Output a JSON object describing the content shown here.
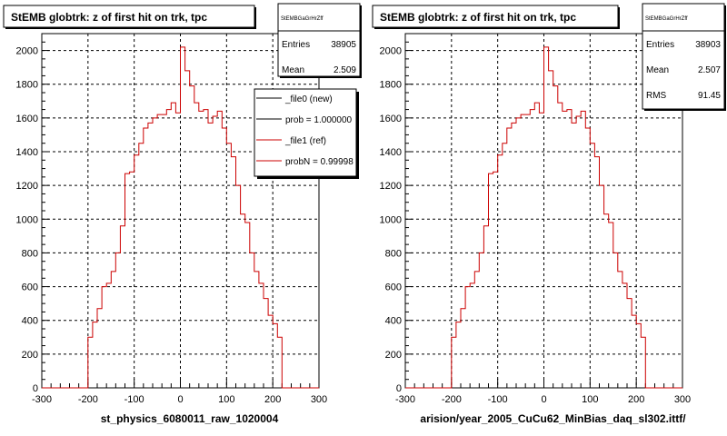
{
  "footer_note": "",
  "chart_data": [
    {
      "type": "histogram",
      "title": "StEMB globtrk: z of first hit on trk, tpc",
      "xlabel": "st_physics_6080011_raw_1020004",
      "ylabel": "",
      "xlim": [
        -300,
        300
      ],
      "ylim": [
        0,
        2100
      ],
      "grid": true,
      "x_ticks": [
        -300,
        -200,
        -100,
        0,
        100,
        200,
        300
      ],
      "y_ticks": [
        0,
        200,
        400,
        600,
        800,
        1000,
        1200,
        1400,
        1600,
        1800,
        2000
      ],
      "stats": {
        "name": "StEMBGaGrHrZff",
        "rows": [
          {
            "label": "Entries",
            "value": "38905"
          },
          {
            "label": "Mean",
            "value": "2.509"
          }
        ]
      },
      "legend": {
        "position": "top-right",
        "entries": [
          {
            "label": "_file0 (new)",
            "color": "#000000"
          },
          {
            "label": "prob = 1.000000",
            "color": "#000000"
          },
          {
            "label": "_file1 (ref)",
            "color": "#cc0000"
          },
          {
            "label": "probN = 0.99998",
            "color": "#cc0000"
          }
        ]
      },
      "bin_edges": [
        -300,
        -290,
        -280,
        -270,
        -260,
        -250,
        -240,
        -230,
        -220,
        -210,
        -200,
        -190,
        -180,
        -170,
        -160,
        -150,
        -140,
        -130,
        -120,
        -110,
        -100,
        -90,
        -80,
        -70,
        -60,
        -50,
        -40,
        -30,
        -20,
        -10,
        0,
        10,
        20,
        30,
        40,
        50,
        60,
        70,
        80,
        90,
        100,
        110,
        120,
        130,
        140,
        150,
        160,
        170,
        180,
        190,
        200,
        210,
        220,
        230,
        240,
        250,
        260,
        270,
        280,
        290,
        300
      ],
      "series": [
        {
          "name": "_file1 (ref)",
          "color": "#cc0000",
          "values": [
            0,
            0,
            0,
            0,
            0,
            0,
            0,
            0,
            0,
            0,
            300,
            390,
            470,
            600,
            620,
            690,
            800,
            960,
            1270,
            1280,
            1380,
            1450,
            1540,
            1570,
            1600,
            1620,
            1620,
            1650,
            1690,
            1630,
            2020,
            1880,
            1790,
            1690,
            1640,
            1650,
            1570,
            1610,
            1640,
            1540,
            1450,
            1370,
            1200,
            1030,
            980,
            800,
            690,
            620,
            530,
            430,
            380,
            300,
            0,
            0,
            0,
            0,
            0,
            0,
            0,
            0
          ]
        }
      ]
    },
    {
      "type": "histogram",
      "title": "StEMB globtrk: z of first hit on trk, tpc",
      "xlabel": "arision/year_2005_CuCu62_MinBias_daq_sl302.ittf/",
      "ylabel": "",
      "xlim": [
        -300,
        300
      ],
      "ylim": [
        0,
        2100
      ],
      "grid": true,
      "x_ticks": [
        -300,
        -200,
        -100,
        0,
        100,
        200,
        300
      ],
      "y_ticks": [
        0,
        200,
        400,
        600,
        800,
        1000,
        1200,
        1400,
        1600,
        1800,
        2000
      ],
      "stats": {
        "name": "StEMBGaGrHrZff",
        "rows": [
          {
            "label": "Entries",
            "value": "38903"
          },
          {
            "label": "Mean",
            "value": "2.507"
          },
          {
            "label": "RMS",
            "value": "91.45"
          }
        ]
      },
      "bin_edges": [
        -300,
        -290,
        -280,
        -270,
        -260,
        -250,
        -240,
        -230,
        -220,
        -210,
        -200,
        -190,
        -180,
        -170,
        -160,
        -150,
        -140,
        -130,
        -120,
        -110,
        -100,
        -90,
        -80,
        -70,
        -60,
        -50,
        -40,
        -30,
        -20,
        -10,
        0,
        10,
        20,
        30,
        40,
        50,
        60,
        70,
        80,
        90,
        100,
        110,
        120,
        130,
        140,
        150,
        160,
        170,
        180,
        190,
        200,
        210,
        220,
        230,
        240,
        250,
        260,
        270,
        280,
        290,
        300
      ],
      "series": [
        {
          "name": "",
          "color": "#cc0000",
          "values": [
            0,
            0,
            0,
            0,
            0,
            0,
            0,
            0,
            0,
            0,
            300,
            390,
            470,
            600,
            620,
            690,
            800,
            960,
            1270,
            1280,
            1380,
            1450,
            1540,
            1570,
            1600,
            1620,
            1620,
            1650,
            1690,
            1630,
            2020,
            1880,
            1790,
            1690,
            1640,
            1650,
            1570,
            1610,
            1640,
            1540,
            1450,
            1370,
            1200,
            1030,
            980,
            800,
            690,
            620,
            530,
            430,
            380,
            300,
            0,
            0,
            0,
            0,
            0,
            0,
            0,
            0
          ]
        }
      ]
    }
  ]
}
